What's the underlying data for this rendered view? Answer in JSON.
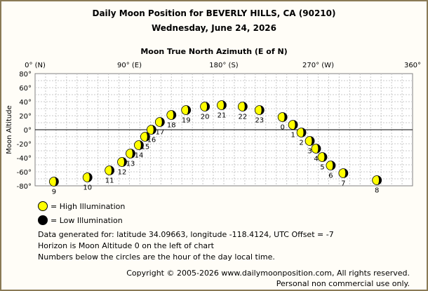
{
  "title": "Daily Moon Position for BEVERLY HILLS, CA (90210)",
  "subtitle": "Wednesday, June 24, 2026",
  "legend": {
    "high": "= High Illumination",
    "low": "= Low Illumination",
    "high_color": "#ffff00",
    "low_color": "#000000"
  },
  "info": {
    "line1": "Data generated for: latitude 34.09663, longitude -118.4124, UTC Offset = -7",
    "line2": "Horizon is Moon Altitude 0 on the left of chart",
    "line3": "Numbers below the circles are the hour of the day local time."
  },
  "copyright": {
    "line1": "Copyright © 2005-2026 www.dailymoonposition.com, All rights reserved.",
    "line2": "Personal non commercial use only."
  },
  "chart_data": {
    "type": "scatter",
    "xlabel": "Moon True North Azimuth (E of N)",
    "ylabel": "Moon Altitude",
    "xlim": [
      0,
      360
    ],
    "ylim": [
      -80,
      80
    ],
    "x_ticks": [
      {
        "value": 0,
        "label": "0° (N)"
      },
      {
        "value": 90,
        "label": "90° (E)"
      },
      {
        "value": 180,
        "label": "180° (S)"
      },
      {
        "value": 270,
        "label": "270° (W)"
      },
      {
        "value": 360,
        "label": "360°"
      }
    ],
    "y_ticks": [
      {
        "value": 80,
        "label": "80°"
      },
      {
        "value": 60,
        "label": "60°"
      },
      {
        "value": 40,
        "label": "40°"
      },
      {
        "value": 20,
        "label": "20°"
      },
      {
        "value": 0,
        "label": "0°"
      },
      {
        "value": -20,
        "label": "-20°"
      },
      {
        "value": -40,
        "label": "-40°"
      },
      {
        "value": -60,
        "label": "-60°"
      },
      {
        "value": -80,
        "label": "-80°"
      }
    ],
    "grid": true,
    "points": [
      {
        "hour": "0",
        "azimuth": 236,
        "altitude": 18
      },
      {
        "hour": "1",
        "azimuth": 246,
        "altitude": 7
      },
      {
        "hour": "2",
        "azimuth": 254,
        "altitude": -4
      },
      {
        "hour": "3",
        "azimuth": 262,
        "altitude": -16
      },
      {
        "hour": "4",
        "azimuth": 268,
        "altitude": -27
      },
      {
        "hour": "5",
        "azimuth": 274,
        "altitude": -39
      },
      {
        "hour": "6",
        "azimuth": 282,
        "altitude": -51
      },
      {
        "hour": "7",
        "azimuth": 294,
        "altitude": -62
      },
      {
        "hour": "8",
        "azimuth": 326,
        "altitude": -72
      },
      {
        "hour": "9",
        "azimuth": 18,
        "altitude": -74
      },
      {
        "hour": "10",
        "azimuth": 50,
        "altitude": -68
      },
      {
        "hour": "11",
        "azimuth": 71,
        "altitude": -58
      },
      {
        "hour": "12",
        "azimuth": 83,
        "altitude": -46
      },
      {
        "hour": "13",
        "azimuth": 91,
        "altitude": -34
      },
      {
        "hour": "14",
        "azimuth": 99,
        "altitude": -22
      },
      {
        "hour": "15",
        "azimuth": 105,
        "altitude": -10
      },
      {
        "hour": "16",
        "azimuth": 111,
        "altitude": 0
      },
      {
        "hour": "17",
        "azimuth": 119,
        "altitude": 11
      },
      {
        "hour": "18",
        "azimuth": 130,
        "altitude": 21
      },
      {
        "hour": "19",
        "azimuth": 144,
        "altitude": 28
      },
      {
        "hour": "20",
        "azimuth": 162,
        "altitude": 33
      },
      {
        "hour": "21",
        "azimuth": 178,
        "altitude": 35
      },
      {
        "hour": "22",
        "azimuth": 198,
        "altitude": 33
      },
      {
        "hour": "23",
        "azimuth": 214,
        "altitude": 28
      }
    ]
  }
}
